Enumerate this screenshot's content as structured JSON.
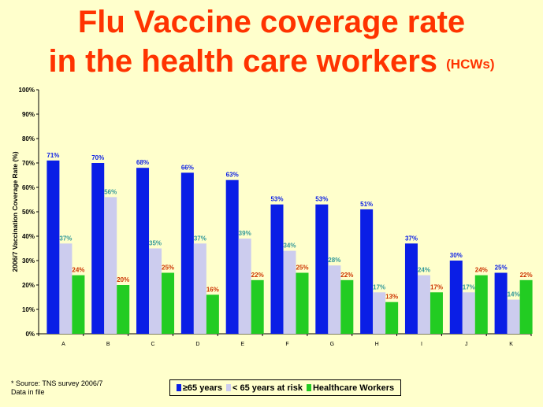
{
  "slide": {
    "title_line1": "Flu Vaccine coverage rate",
    "title_line2": "in the health care workers",
    "title_suffix": "(HCWs)",
    "footnote_line1": "* Source: TNS survey 2006/7",
    "footnote_line2": "Data in file"
  },
  "chart_data": {
    "type": "bar",
    "ylabel": "2006/7 Vaccination Coverage Rate (%)",
    "xlabel": "",
    "ylim": [
      0,
      100
    ],
    "yticks": [
      "0%",
      "10%",
      "20%",
      "30%",
      "40%",
      "50%",
      "60%",
      "70%",
      "80%",
      "90%",
      "100%"
    ],
    "grid": false,
    "legend_position": "bottom",
    "categories": [
      "A",
      "B",
      "C",
      "D",
      "E",
      "F",
      "G",
      "H",
      "I",
      "J",
      "K"
    ],
    "series": [
      {
        "name": "≥65 years",
        "color": "#0a1ee6",
        "label_color": "#0a1ee6",
        "values": [
          71,
          70,
          68,
          66,
          63,
          53,
          53,
          51,
          37,
          30,
          25
        ]
      },
      {
        "name": "< 65 years at risk",
        "color": "#ccccee",
        "label_color": "#339999",
        "values": [
          37,
          56,
          35,
          37,
          39,
          34,
          28,
          17,
          24,
          17,
          14
        ]
      },
      {
        "name": "Healthcare Workers",
        "color": "#22cc22",
        "label_color": "#cc3300",
        "values": [
          24,
          20,
          25,
          16,
          22,
          25,
          22,
          13,
          17,
          24,
          22
        ]
      }
    ]
  }
}
